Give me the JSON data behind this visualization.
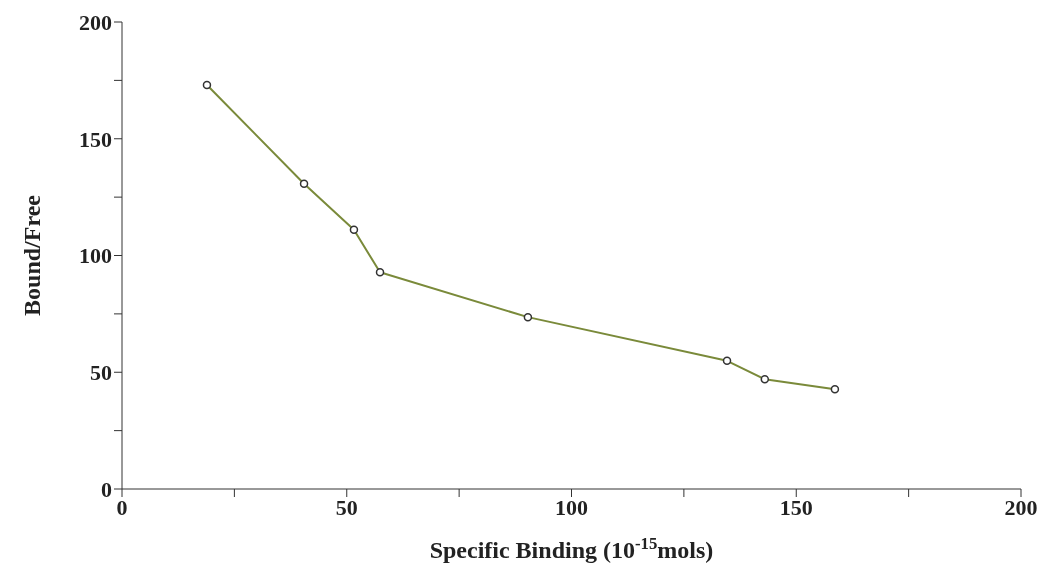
{
  "chart_data": {
    "type": "line",
    "xlabel": "Specific Binding (10$^{-15}$mols)",
    "ylabel": "Bound/Free",
    "x": [
      18.9,
      40.5,
      51.6,
      57.4,
      90.3,
      134.6,
      143,
      158.6
    ],
    "series": [
      {
        "color": "#7a8a3a",
        "values": [
          173,
          130.7,
          111,
          92.8,
          73.6,
          54.9,
          47,
          42.7
        ]
      }
    ],
    "xlim": [
      0,
      200
    ],
    "ylim": [
      0,
      200
    ],
    "xticks": [
      0,
      {
        "value": 25,
        "label": null
      },
      50,
      {
        "value": 75,
        "label": null
      },
      100,
      {
        "value": 125,
        "label": null
      },
      150,
      {
        "value": 175,
        "label": null
      },
      200
    ],
    "yticks": [
      0,
      {
        "value": 25,
        "label": null
      },
      50,
      {
        "value": 75,
        "label": null
      },
      100,
      {
        "value": 125,
        "label": null
      },
      150,
      {
        "value": 175,
        "label": null
      },
      200
    ],
    "grid": false,
    "legend": false,
    "marker": "circle",
    "line_style": "solid"
  }
}
